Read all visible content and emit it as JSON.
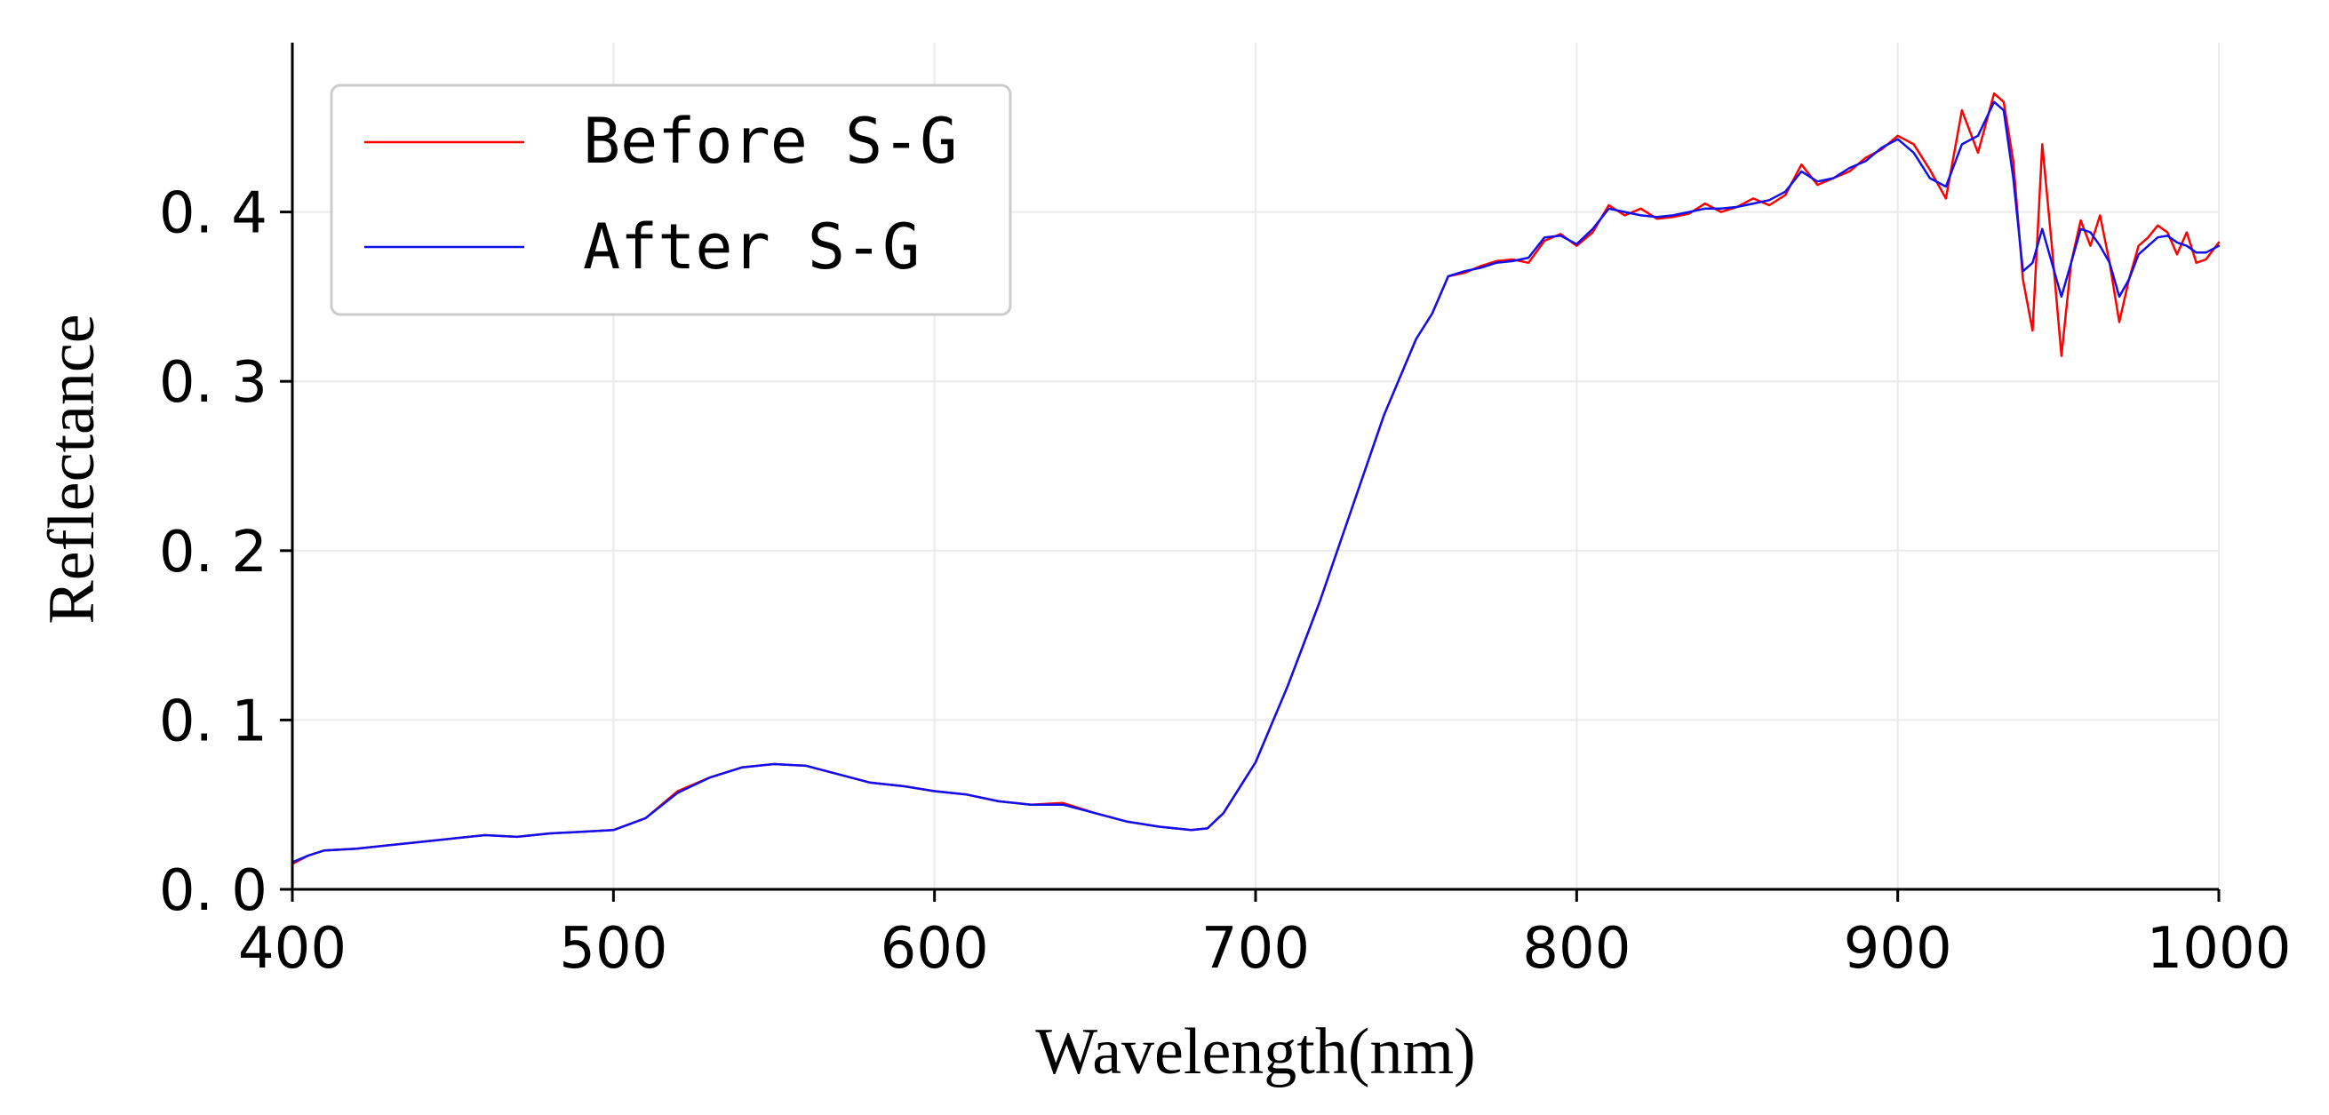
{
  "chart_data": {
    "type": "line",
    "title": "",
    "xlabel": "Wavelength(nm)",
    "ylabel": "Reflectance",
    "xlim": [
      400,
      1000
    ],
    "ylim": [
      0.0,
      0.5
    ],
    "xticks": [
      400,
      500,
      600,
      700,
      800,
      900,
      1000
    ],
    "xtick_labels": [
      "400",
      "500",
      "600",
      "700",
      "800",
      "900",
      "1000"
    ],
    "yticks": [
      0.0,
      0.1,
      0.2,
      0.3,
      0.4
    ],
    "ytick_labels": [
      "0. 0",
      "0. 1",
      "0. 2",
      "0. 3",
      "0. 4"
    ],
    "grid": true,
    "legend_position": "top-left",
    "series": [
      {
        "name": "Before S-G",
        "color": "#ff0000",
        "x": [
          400,
          405,
          410,
          420,
          430,
          440,
          450,
          460,
          470,
          480,
          490,
          500,
          510,
          520,
          530,
          540,
          550,
          560,
          570,
          580,
          590,
          600,
          610,
          620,
          630,
          640,
          650,
          660,
          670,
          680,
          685,
          690,
          700,
          710,
          720,
          730,
          740,
          750,
          755,
          760,
          765,
          770,
          775,
          780,
          785,
          790,
          795,
          800,
          805,
          810,
          815,
          820,
          825,
          830,
          835,
          840,
          845,
          850,
          855,
          860,
          865,
          870,
          875,
          880,
          885,
          890,
          895,
          900,
          905,
          910,
          915,
          920,
          925,
          930,
          933,
          936,
          939,
          942,
          945,
          948,
          951,
          954,
          957,
          960,
          963,
          966,
          969,
          972,
          975,
          978,
          981,
          984,
          987,
          990,
          993,
          996,
          1000
        ],
        "y": [
          0.015,
          0.02,
          0.023,
          0.024,
          0.026,
          0.028,
          0.03,
          0.032,
          0.031,
          0.033,
          0.034,
          0.035,
          0.042,
          0.058,
          0.066,
          0.072,
          0.074,
          0.073,
          0.068,
          0.063,
          0.061,
          0.058,
          0.056,
          0.052,
          0.05,
          0.051,
          0.045,
          0.04,
          0.037,
          0.035,
          0.036,
          0.045,
          0.075,
          0.12,
          0.17,
          0.225,
          0.28,
          0.325,
          0.34,
          0.362,
          0.364,
          0.368,
          0.371,
          0.372,
          0.37,
          0.383,
          0.387,
          0.38,
          0.388,
          0.404,
          0.398,
          0.402,
          0.396,
          0.397,
          0.399,
          0.405,
          0.4,
          0.403,
          0.408,
          0.404,
          0.41,
          0.428,
          0.416,
          0.42,
          0.424,
          0.432,
          0.437,
          0.445,
          0.44,
          0.425,
          0.408,
          0.46,
          0.435,
          0.47,
          0.465,
          0.43,
          0.36,
          0.33,
          0.44,
          0.38,
          0.315,
          0.37,
          0.395,
          0.38,
          0.398,
          0.37,
          0.335,
          0.36,
          0.38,
          0.385,
          0.392,
          0.388,
          0.375,
          0.388,
          0.37,
          0.372,
          0.382
        ]
      },
      {
        "name": "After S-G",
        "color": "#1010ee",
        "x": [
          400,
          405,
          410,
          420,
          430,
          440,
          450,
          460,
          470,
          480,
          490,
          500,
          510,
          520,
          530,
          540,
          550,
          560,
          570,
          580,
          590,
          600,
          610,
          620,
          630,
          640,
          650,
          660,
          670,
          680,
          685,
          690,
          700,
          710,
          720,
          730,
          740,
          750,
          755,
          760,
          765,
          770,
          775,
          780,
          785,
          790,
          795,
          800,
          805,
          810,
          815,
          820,
          825,
          830,
          835,
          840,
          845,
          850,
          855,
          860,
          865,
          870,
          875,
          880,
          885,
          890,
          895,
          900,
          905,
          910,
          915,
          920,
          925,
          930,
          933,
          936,
          939,
          942,
          945,
          948,
          951,
          954,
          957,
          960,
          963,
          966,
          969,
          972,
          975,
          978,
          981,
          984,
          987,
          990,
          993,
          996,
          1000
        ],
        "y": [
          0.016,
          0.02,
          0.023,
          0.024,
          0.026,
          0.028,
          0.03,
          0.032,
          0.031,
          0.033,
          0.034,
          0.035,
          0.042,
          0.057,
          0.066,
          0.072,
          0.074,
          0.073,
          0.068,
          0.063,
          0.061,
          0.058,
          0.056,
          0.052,
          0.05,
          0.05,
          0.045,
          0.04,
          0.037,
          0.035,
          0.036,
          0.045,
          0.075,
          0.12,
          0.17,
          0.225,
          0.28,
          0.325,
          0.34,
          0.362,
          0.365,
          0.367,
          0.37,
          0.371,
          0.373,
          0.385,
          0.386,
          0.381,
          0.39,
          0.402,
          0.4,
          0.398,
          0.397,
          0.398,
          0.4,
          0.402,
          0.402,
          0.403,
          0.405,
          0.407,
          0.412,
          0.424,
          0.418,
          0.42,
          0.426,
          0.43,
          0.438,
          0.443,
          0.435,
          0.42,
          0.415,
          0.44,
          0.445,
          0.465,
          0.46,
          0.42,
          0.365,
          0.37,
          0.39,
          0.37,
          0.35,
          0.37,
          0.39,
          0.388,
          0.38,
          0.37,
          0.35,
          0.36,
          0.375,
          0.38,
          0.385,
          0.386,
          0.382,
          0.38,
          0.376,
          0.376,
          0.38
        ]
      }
    ]
  }
}
